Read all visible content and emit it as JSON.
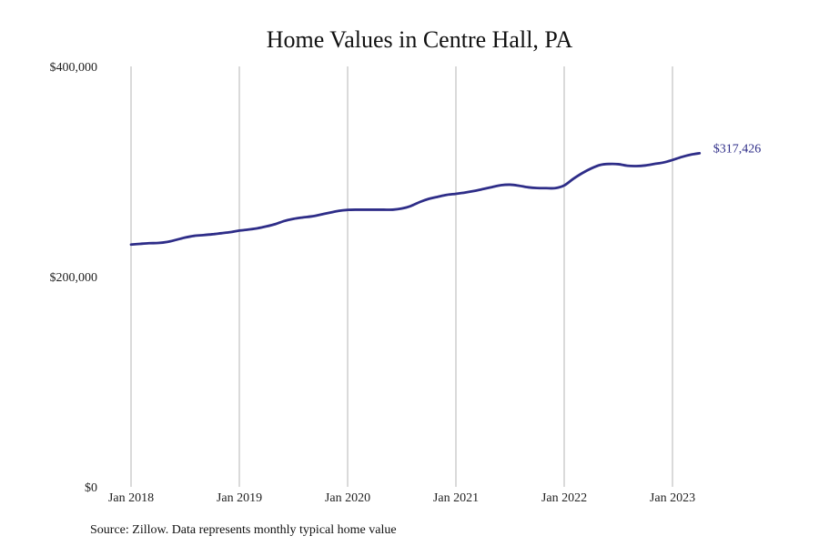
{
  "chart_data": {
    "type": "line",
    "title": "Home Values in Centre Hall, PA",
    "source_note": "Source: Zillow. Data represents monthly typical home value",
    "xlabel": "",
    "ylabel": "",
    "x_ticks": [
      {
        "date": "2018-01",
        "label": "Jan 2018"
      },
      {
        "date": "2019-01",
        "label": "Jan 2019"
      },
      {
        "date": "2020-01",
        "label": "Jan 2020"
      },
      {
        "date": "2021-01",
        "label": "Jan 2021"
      },
      {
        "date": "2022-01",
        "label": "Jan 2022"
      },
      {
        "date": "2023-01",
        "label": "Jan 2023"
      }
    ],
    "y_ticks": [
      {
        "value": 0,
        "label": "$0"
      },
      {
        "value": 200000,
        "label": "$200,000"
      },
      {
        "value": 400000,
        "label": "$400,000"
      }
    ],
    "ylim": [
      0,
      400000
    ],
    "xlim": [
      "2018-01",
      "2024-01"
    ],
    "grid": "vertical",
    "line_color": "#2e2d88",
    "end_label": "$317,426",
    "series": [
      {
        "x": [
          "2018-01",
          "2018-02",
          "2018-03",
          "2018-04",
          "2018-05",
          "2018-06",
          "2018-07",
          "2018-08",
          "2018-09",
          "2018-10",
          "2018-11",
          "2018-12",
          "2019-01",
          "2019-02",
          "2019-03",
          "2019-04",
          "2019-05",
          "2019-06",
          "2019-07",
          "2019-08",
          "2019-09",
          "2019-10",
          "2019-11",
          "2019-12",
          "2020-01",
          "2020-02",
          "2020-03",
          "2020-04",
          "2020-05",
          "2020-06",
          "2020-07",
          "2020-08",
          "2020-09",
          "2020-10",
          "2020-11",
          "2020-12",
          "2021-01",
          "2021-02",
          "2021-03",
          "2021-04",
          "2021-05",
          "2021-06",
          "2021-07",
          "2021-08",
          "2021-09",
          "2021-10",
          "2021-11",
          "2021-12",
          "2022-01",
          "2022-02",
          "2022-03",
          "2022-04",
          "2022-05",
          "2022-06",
          "2022-07",
          "2022-08",
          "2022-09",
          "2022-10",
          "2022-11",
          "2022-12",
          "2023-01",
          "2023-02",
          "2023-03",
          "2023-04"
        ],
        "values": [
          230500,
          231200,
          231800,
          232000,
          233000,
          235000,
          237200,
          238800,
          239500,
          240300,
          241300,
          242300,
          243800,
          244800,
          246000,
          247800,
          250000,
          253000,
          255000,
          256300,
          257300,
          259000,
          260800,
          262600,
          263500,
          263700,
          263700,
          263700,
          263700,
          263700,
          264800,
          267200,
          271000,
          274000,
          276000,
          277800,
          278800,
          280000,
          281500,
          283300,
          285200,
          287000,
          287500,
          286500,
          285000,
          284300,
          284200,
          284200,
          286800,
          293000,
          298500,
          303000,
          306300,
          307200,
          307000,
          305500,
          305200,
          305800,
          307200,
          308600,
          311000,
          313800,
          316000,
          317426
        ]
      }
    ]
  }
}
